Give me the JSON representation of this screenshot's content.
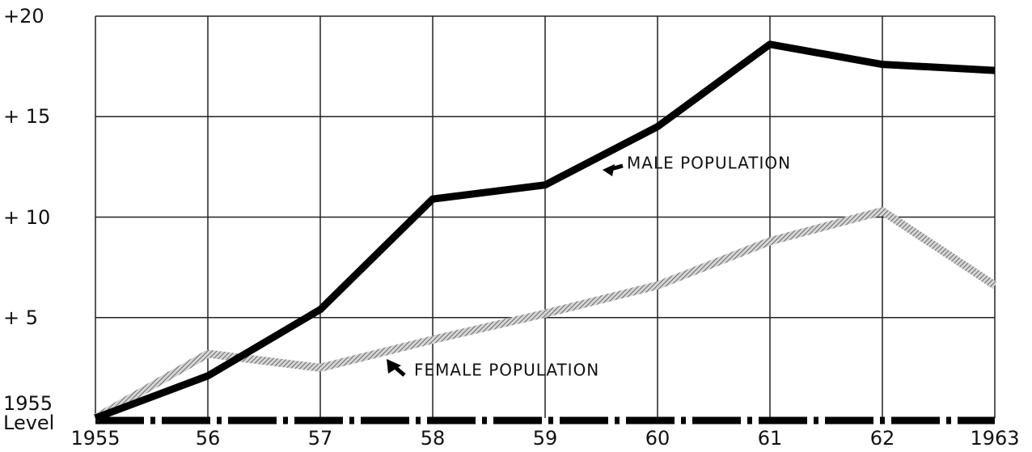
{
  "chart_data": {
    "type": "line",
    "categories": [
      "1955",
      "56",
      "57",
      "58",
      "59",
      "60",
      "61",
      "62",
      "1963"
    ],
    "series": [
      {
        "name": "MALE POPULATION",
        "color": "#000000",
        "values": [
          0,
          2.1,
          5.4,
          10.9,
          11.6,
          14.5,
          18.6,
          17.6,
          17.3
        ]
      },
      {
        "name": "FEMALE POPULATION",
        "color": "#9a9a9a",
        "values": [
          0,
          3.2,
          2.5,
          3.9,
          5.2,
          6.6,
          8.8,
          10.3,
          6.6
        ]
      }
    ],
    "ylim": [
      0,
      20
    ],
    "yticks": [
      {
        "value": 0,
        "label": "1955 Level"
      },
      {
        "value": 5,
        "label": "+ 5"
      },
      {
        "value": 10,
        "label": "+ 10"
      },
      {
        "value": 15,
        "label": "+ 15"
      },
      {
        "value": 20,
        "label": "+20"
      }
    ],
    "grid": true
  }
}
